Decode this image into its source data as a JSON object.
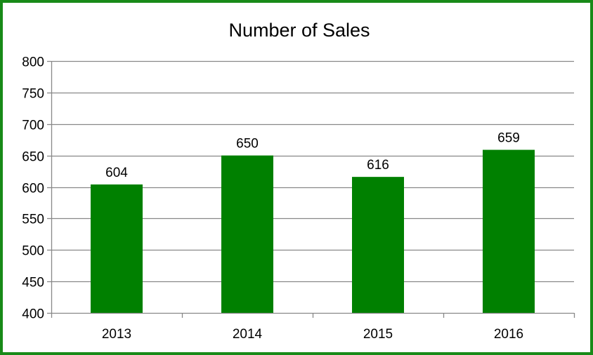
{
  "colors": {
    "bar": "#008000",
    "border": "#188a18",
    "grid": "#888888"
  },
  "chart_data": {
    "type": "bar",
    "title": "Number of Sales",
    "xlabel": "",
    "ylabel": "",
    "categories": [
      "2013",
      "2014",
      "2015",
      "2016"
    ],
    "values": [
      604,
      650,
      616,
      659
    ],
    "data_labels": [
      "604",
      "650",
      "616",
      "659"
    ],
    "ylim": [
      400,
      800
    ],
    "yticks": [
      400,
      450,
      500,
      550,
      600,
      650,
      700,
      750,
      800
    ],
    "grid": true,
    "legend": "none"
  }
}
